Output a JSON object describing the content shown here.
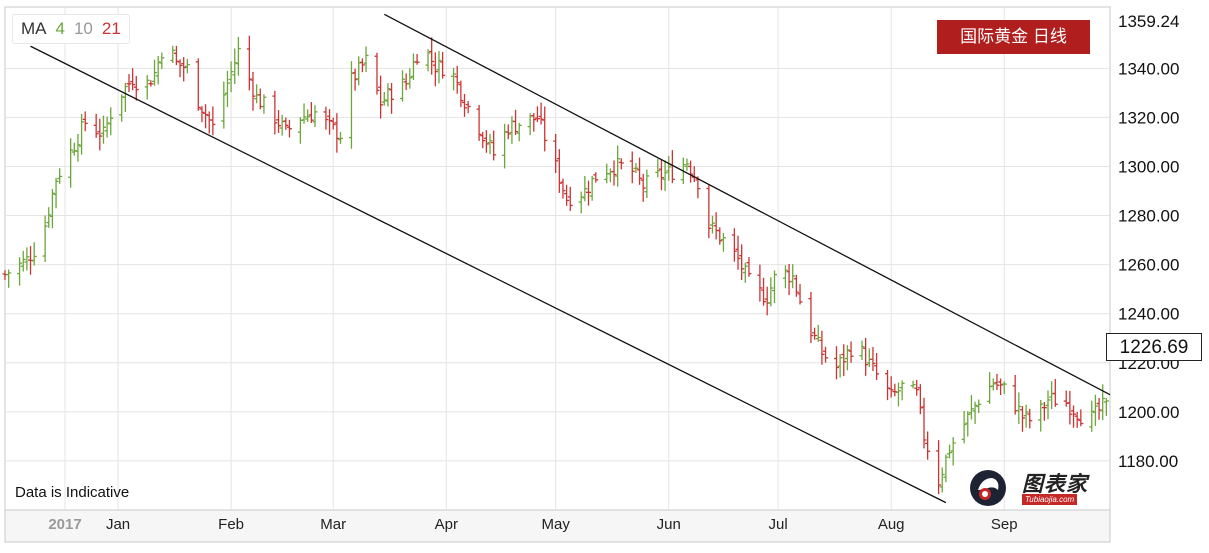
{
  "title": "国际黄金 日线",
  "note": "Data is Indicative",
  "current_price": "1226.69",
  "ma_legend": {
    "label": "MA",
    "periods": [
      "4",
      "10",
      "21"
    ]
  },
  "logo": {
    "name": "图表家",
    "subtitle": "Tubiaojia.com"
  },
  "colors": {
    "up": "#6aa63a",
    "down": "#cc3333",
    "badge": "#b01e1e",
    "ma4": "#6aa63a",
    "ma10": "#999999",
    "ma21": "#cc3333"
  },
  "chart_data": {
    "type": "ohlc",
    "instrument": "国际黄金",
    "timeframe": "日线",
    "x_labels": [
      "2017",
      "Jan",
      "Feb",
      "Mar",
      "Apr",
      "May",
      "Jun",
      "Jul",
      "Aug",
      "Sep"
    ],
    "y_ticks": [
      "1359.24",
      "1340.00",
      "1320.00",
      "1300.00",
      "1280.00",
      "1260.00",
      "1240.00",
      "1220.00",
      "1200.00",
      "1180.00"
    ],
    "ylim": [
      1160,
      1365
    ],
    "xlim": [
      "2016-12-01",
      "2017-09-30"
    ],
    "grid": true,
    "axis_position": "right",
    "close_path": [
      [
        "2016-12-01",
        1256
      ],
      [
        "2016-12-07",
        1262
      ],
      [
        "2016-12-11",
        1270
      ],
      [
        "2016-12-15",
        1295
      ],
      [
        "2016-12-19",
        1306
      ],
      [
        "2016-12-23",
        1318
      ],
      [
        "2016-12-28",
        1313
      ],
      [
        "2016-12-31",
        1326
      ],
      [
        "2017-01-05",
        1336
      ],
      [
        "2017-01-08",
        1332
      ],
      [
        "2017-01-11",
        1338
      ],
      [
        "2017-01-14",
        1352
      ],
      [
        "2017-01-17",
        1342
      ],
      [
        "2017-01-20",
        1340
      ],
      [
        "2017-01-23",
        1327
      ],
      [
        "2017-01-27",
        1316
      ],
      [
        "2017-01-31",
        1334
      ],
      [
        "2017-02-03",
        1347
      ],
      [
        "2017-02-08",
        1328
      ],
      [
        "2017-02-12",
        1322
      ],
      [
        "2017-02-16",
        1314
      ],
      [
        "2017-02-20",
        1320
      ],
      [
        "2017-02-24",
        1322
      ],
      [
        "2017-02-28",
        1316
      ],
      [
        "2017-03-03",
        1313
      ],
      [
        "2017-03-06",
        1335
      ],
      [
        "2017-03-10",
        1343
      ],
      [
        "2017-03-14",
        1326
      ],
      [
        "2017-03-18",
        1332
      ],
      [
        "2017-03-21",
        1334
      ],
      [
        "2017-03-25",
        1350
      ],
      [
        "2017-03-29",
        1341
      ],
      [
        "2017-04-02",
        1340
      ],
      [
        "2017-04-06",
        1327
      ],
      [
        "2017-04-10",
        1316
      ],
      [
        "2017-04-14",
        1305
      ],
      [
        "2017-04-18",
        1316
      ],
      [
        "2017-04-22",
        1318
      ],
      [
        "2017-04-26",
        1320
      ],
      [
        "2017-04-30",
        1304
      ],
      [
        "2017-05-04",
        1287
      ],
      [
        "2017-05-09",
        1290
      ],
      [
        "2017-05-13",
        1298
      ],
      [
        "2017-05-17",
        1300
      ],
      [
        "2017-05-21",
        1300
      ],
      [
        "2017-05-25",
        1292
      ],
      [
        "2017-05-29",
        1296
      ],
      [
        "2017-06-02",
        1298
      ],
      [
        "2017-06-06",
        1302
      ],
      [
        "2017-06-09",
        1294
      ],
      [
        "2017-06-12",
        1276
      ],
      [
        "2017-06-16",
        1270
      ],
      [
        "2017-06-20",
        1262
      ],
      [
        "2017-06-24",
        1250
      ],
      [
        "2017-06-28",
        1247
      ],
      [
        "2017-07-01",
        1258
      ],
      [
        "2017-07-05",
        1255
      ],
      [
        "2017-07-09",
        1236
      ],
      [
        "2017-07-13",
        1224
      ],
      [
        "2017-07-17",
        1218
      ],
      [
        "2017-07-21",
        1226
      ],
      [
        "2017-07-24",
        1224
      ],
      [
        "2017-07-28",
        1215
      ],
      [
        "2017-08-01",
        1206
      ],
      [
        "2017-08-04",
        1210
      ],
      [
        "2017-08-08",
        1207
      ],
      [
        "2017-08-10",
        1190
      ],
      [
        "2017-08-14",
        1172
      ],
      [
        "2017-08-17",
        1185
      ],
      [
        "2017-08-21",
        1195
      ],
      [
        "2017-08-25",
        1205
      ],
      [
        "2017-08-29",
        1212
      ],
      [
        "2017-09-02",
        1208
      ],
      [
        "2017-09-06",
        1198
      ],
      [
        "2017-09-09",
        1196
      ],
      [
        "2017-09-13",
        1205
      ],
      [
        "2017-09-17",
        1205
      ],
      [
        "2017-09-21",
        1200
      ],
      [
        "2017-09-24",
        1196
      ],
      [
        "2017-09-28",
        1202
      ]
    ],
    "trendlines": [
      {
        "name": "upper-channel-line",
        "from": [
          "2017-03-15",
          1362
        ],
        "to": [
          "2017-09-30",
          1207
        ]
      },
      {
        "name": "lower-channel-line",
        "from": [
          "2016-12-08",
          1349
        ],
        "to": [
          "2017-08-16",
          1163
        ]
      }
    ]
  }
}
